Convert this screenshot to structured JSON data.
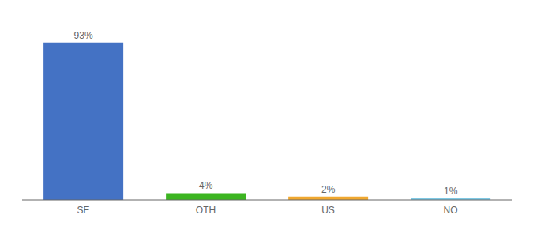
{
  "chart_data": {
    "type": "bar",
    "categories": [
      "SE",
      "OTH",
      "US",
      "NO"
    ],
    "values": [
      93,
      4,
      2,
      1
    ],
    "value_labels": [
      "93%",
      "4%",
      "2%",
      "1%"
    ],
    "colors": [
      "#4472c4",
      "#3cb521",
      "#f0a830",
      "#7ec8e3"
    ],
    "ylim": [
      0,
      105
    ],
    "grid": false,
    "tick_labels": "x",
    "data_labels": true
  }
}
